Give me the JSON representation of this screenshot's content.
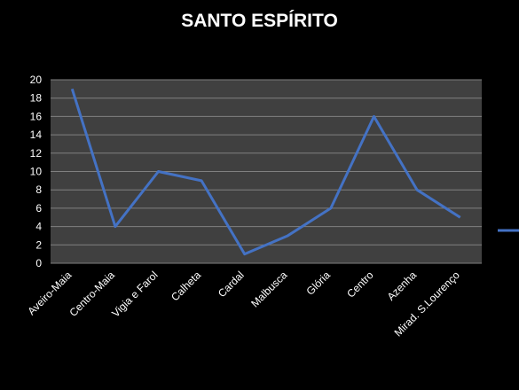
{
  "chart_data": {
    "type": "line",
    "title": "SANTO ESPÍRITO",
    "categories": [
      "Aveiro-Maia",
      "Centro-Maia",
      "Vigia e Farol",
      "Calheta",
      "Cardal",
      "Malbusca",
      "Glória",
      "Centro",
      "Azenha",
      "Mirad. S.Lourenço"
    ],
    "series": [
      {
        "values": [
          19,
          4,
          10,
          9,
          1,
          3,
          6,
          16,
          8,
          5
        ],
        "color": "#4472c4"
      }
    ],
    "ylim": [
      0,
      20
    ],
    "yticks": [
      0,
      2,
      4,
      6,
      8,
      10,
      12,
      14,
      16,
      18,
      20
    ],
    "grid": true,
    "plot_background": "#404040",
    "gridline_color": "#808080",
    "legend": "right"
  }
}
